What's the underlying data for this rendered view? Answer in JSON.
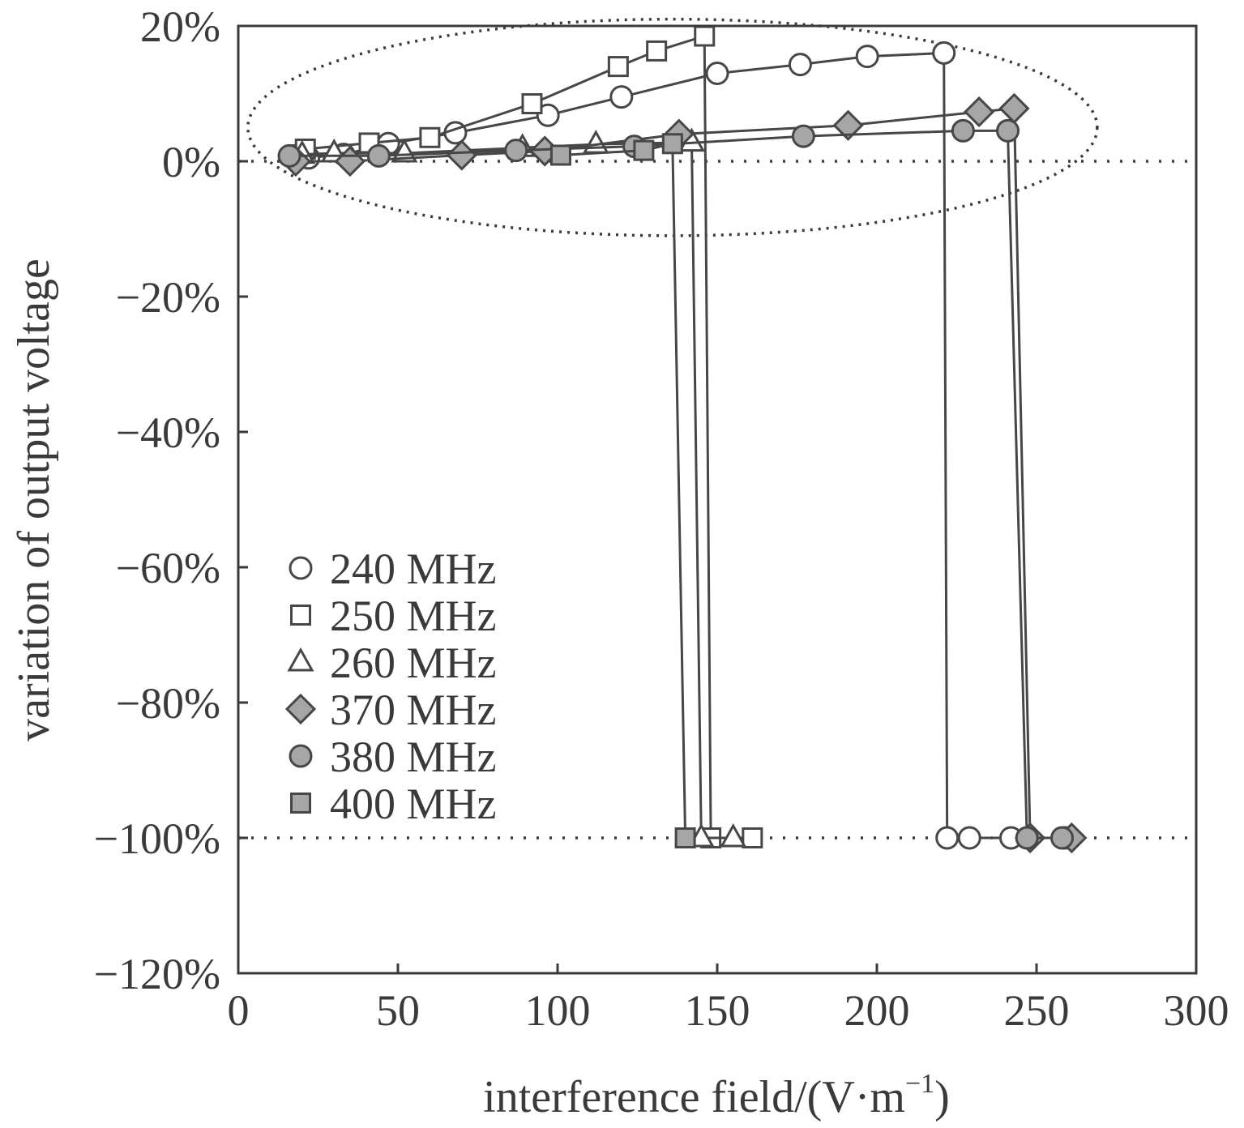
{
  "chart_data": {
    "type": "line",
    "xlabel_main": "interference field/(V·m",
    "xlabel_sup": "−1",
    "xlabel_close": ")",
    "ylabel": "variation of output voltage",
    "xlim": [
      0,
      300
    ],
    "ylim": [
      -120,
      20
    ],
    "x_ticks": [
      0,
      50,
      100,
      150,
      200,
      250,
      300
    ],
    "x_tick_labels": [
      "0",
      "50",
      "100",
      "150",
      "200",
      "250",
      "300"
    ],
    "y_ticks": [
      20,
      0,
      -20,
      -40,
      -60,
      -80,
      -100,
      -120
    ],
    "y_tick_labels": [
      "20%",
      "0%",
      "−20%",
      "−40%",
      "−60%",
      "−80%",
      "−100%",
      "−120%"
    ],
    "reference_lines": [
      0,
      -100
    ],
    "grid": false,
    "legend_position": "lower-left",
    "highlight_ellipse": {
      "cx": 136,
      "cy": 5,
      "rx": 133,
      "ry": 16
    },
    "colors": {
      "line": "#474747",
      "filled_marker": "#a6a6a6",
      "open_marker": "#ffffff"
    },
    "series": [
      {
        "name": "240 MHz",
        "marker": "circle",
        "filled": false,
        "points": [
          [
            17,
            0.8
          ],
          [
            22,
            0.5
          ],
          [
            33,
            1
          ],
          [
            47,
            2.6
          ],
          [
            68,
            4.2
          ],
          [
            97,
            6.8
          ],
          [
            120,
            9.5
          ],
          [
            150,
            13
          ],
          [
            176,
            14.3
          ],
          [
            197,
            15.5
          ],
          [
            221,
            16
          ],
          [
            222,
            -100
          ],
          [
            229,
            -100
          ],
          [
            242,
            -100
          ],
          [
            259,
            -100
          ]
        ]
      },
      {
        "name": "250 MHz",
        "marker": "square",
        "filled": false,
        "points": [
          [
            21,
            1.8
          ],
          [
            41,
            2.7
          ],
          [
            60,
            3.5
          ],
          [
            92,
            8.5
          ],
          [
            119,
            14
          ],
          [
            131,
            16.3
          ],
          [
            146,
            18.5
          ],
          [
            148,
            -100
          ],
          [
            161,
            -100
          ]
        ]
      },
      {
        "name": "260 MHz",
        "marker": "triangle",
        "filled": false,
        "points": [
          [
            20,
            1
          ],
          [
            30,
            1.2
          ],
          [
            52,
            1.2
          ],
          [
            89,
            2
          ],
          [
            112,
            2.5
          ],
          [
            142,
            2.8
          ],
          [
            145,
            -100
          ],
          [
            155,
            -100
          ]
        ]
      },
      {
        "name": "370 MHz",
        "marker": "diamond",
        "filled": true,
        "points": [
          [
            18,
            0
          ],
          [
            35,
            0
          ],
          [
            70,
            0.9
          ],
          [
            96,
            1.5
          ],
          [
            138,
            4
          ],
          [
            191,
            5.3
          ],
          [
            232,
            7.3
          ],
          [
            243,
            7.8
          ],
          [
            248,
            -100
          ],
          [
            261,
            -100
          ]
        ]
      },
      {
        "name": "380 MHz",
        "marker": "circle",
        "filled": true,
        "points": [
          [
            16,
            0.8
          ],
          [
            44,
            0.8
          ],
          [
            87,
            1.6
          ],
          [
            124,
            2.2
          ],
          [
            177,
            3.7
          ],
          [
            227,
            4.5
          ],
          [
            241,
            4.5
          ],
          [
            247,
            -100
          ],
          [
            258,
            -100
          ]
        ]
      },
      {
        "name": "400 MHz",
        "marker": "square",
        "filled": true,
        "points": [
          [
            101,
            0.9
          ],
          [
            127,
            1.6
          ],
          [
            136,
            2.6
          ],
          [
            140,
            -100
          ]
        ]
      }
    ]
  }
}
